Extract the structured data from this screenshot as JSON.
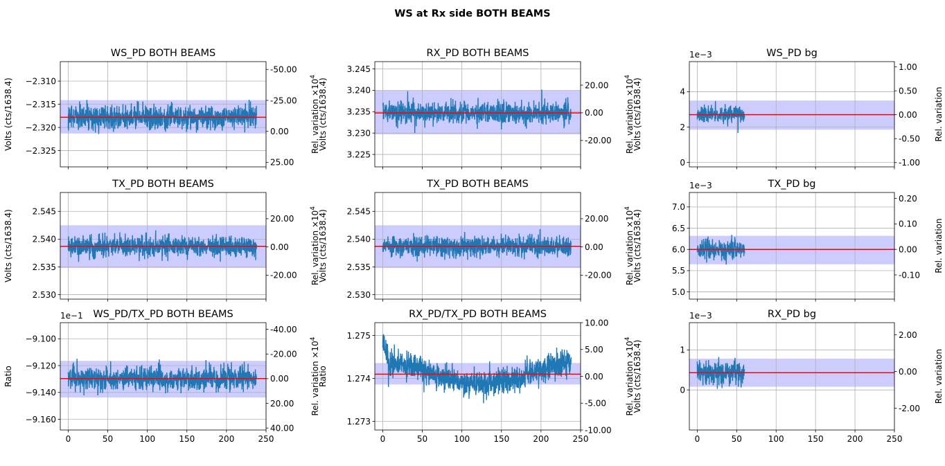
{
  "figure_title": "WS at Rx side BOTH BEAMS",
  "colors": {
    "trace": "#1f77b4",
    "mean": "#ff0000",
    "band": "#9999ff",
    "grid": "#b0b0b0"
  },
  "x_ticks": [
    "0",
    "50",
    "100",
    "150",
    "200",
    "250"
  ],
  "chart_data": [
    {
      "id": "ws-pd-both",
      "type": "line",
      "title": "WS_PD BOTH BEAMS",
      "ylabel": "Volts (cts/1638.4)",
      "ylabel2": "Rel. variation ×10",
      "ylabel2_exp": "4",
      "offset_label": "",
      "xlim": [
        -10,
        250
      ],
      "ylim": [
        -2.3285,
        -2.3058
      ],
      "ylim2": [
        28.7,
        -56.3
      ],
      "x_range": [
        0,
        238
      ],
      "mean": -2.3178,
      "band": [
        -2.3213,
        -2.3141
      ],
      "noise": 0.0045,
      "yticks": [
        -2.31,
        -2.315,
        -2.32,
        -2.325
      ],
      "yticklabels": [
        "−2.310",
        "−2.315",
        "−2.320",
        "−2.325"
      ],
      "y2ticks": [
        -50,
        -25,
        0,
        25
      ],
      "y2ticklabels": [
        "-50.00",
        "-25.00",
        "0.00",
        "25.00"
      ],
      "show_xticklabels": false
    },
    {
      "id": "rx-pd-both",
      "type": "line",
      "title": "RX_PD BOTH BEAMS",
      "ylabel": "Volts (cts/1638.4)",
      "ylabel2": "Rel. variation ×10",
      "ylabel2_exp": "4",
      "offset_label": "",
      "xlim": [
        -10,
        250
      ],
      "ylim": [
        3.2221,
        3.2467
      ],
      "ylim2": [
        -39.1,
        37.0
      ],
      "x_range": [
        0,
        238
      ],
      "mean": 3.2347,
      "band": [
        3.2297,
        3.2399
      ],
      "noise": 0.0046,
      "yticks": [
        3.225,
        3.23,
        3.235,
        3.24,
        3.245
      ],
      "yticklabels": [
        "3.225",
        "3.230",
        "3.235",
        "3.240",
        "3.245"
      ],
      "y2ticks": [
        -20,
        0,
        20
      ],
      "y2ticklabels": [
        "-20.00",
        "0.00",
        "20.00"
      ],
      "show_xticklabels": false
    },
    {
      "id": "ws-pd-bg",
      "type": "line",
      "title": "WS_PD bg",
      "ylabel": "Volts (cts/1638.4)",
      "ylabel2": "Rel. variation",
      "ylabel2_exp": "",
      "offset_label": "1e−3",
      "xlim": [
        -10,
        250
      ],
      "ylim": [
        -0.25,
        5.7
      ],
      "ylim2": [
        -1.09,
        1.11
      ],
      "x_range": [
        0,
        60
      ],
      "mean": 2.7,
      "band": [
        1.85,
        3.5
      ],
      "noise": 0.9,
      "yticks": [
        0,
        2,
        4
      ],
      "yticklabels": [
        "0",
        "2",
        "4"
      ],
      "y2ticks": [
        -1.0,
        -0.5,
        0.0,
        0.5,
        1.0
      ],
      "y2ticklabels": [
        "-1.00",
        "-0.50",
        "0.00",
        "0.50",
        "1.00"
      ],
      "show_xticklabels": false
    },
    {
      "id": "tx-pd-both-left",
      "type": "line",
      "title": "TX_PD BOTH BEAMS",
      "ylabel": "Volts (cts/1638.4)",
      "ylabel2": "Rel. variation ×10",
      "ylabel2_exp": "4",
      "offset_label": "",
      "xlim": [
        -10,
        250
      ],
      "ylim": [
        2.5292,
        2.5484
      ],
      "ylim2": [
        -37.0,
        38.6
      ],
      "x_range": [
        0,
        238
      ],
      "mean": 2.5387,
      "band": [
        2.5348,
        2.5425
      ],
      "noise": 0.0033,
      "yticks": [
        2.53,
        2.535,
        2.54,
        2.545
      ],
      "yticklabels": [
        "2.530",
        "2.535",
        "2.540",
        "2.545"
      ],
      "y2ticks": [
        -20,
        0,
        20
      ],
      "y2ticklabels": [
        "-20.00",
        "0.00",
        "20.00"
      ],
      "show_xticklabels": false
    },
    {
      "id": "tx-pd-both-mid",
      "type": "line",
      "title": "TX_PD BOTH BEAMS",
      "ylabel": "Volts (cts/1638.4)",
      "ylabel2": "Rel. variation ×10",
      "ylabel2_exp": "4",
      "offset_label": "",
      "xlim": [
        -10,
        250
      ],
      "ylim": [
        2.5292,
        2.5484
      ],
      "ylim2": [
        -37.0,
        38.6
      ],
      "x_range": [
        0,
        238
      ],
      "mean": 2.5387,
      "band": [
        2.5348,
        2.5425
      ],
      "noise": 0.0033,
      "yticks": [
        2.53,
        2.535,
        2.54,
        2.545
      ],
      "yticklabels": [
        "2.530",
        "2.535",
        "2.540",
        "2.545"
      ],
      "y2ticks": [
        -20,
        0,
        20
      ],
      "y2ticklabels": [
        "-20.00",
        "0.00",
        "20.00"
      ],
      "show_xticklabels": false
    },
    {
      "id": "tx-pd-bg",
      "type": "line",
      "title": "TX_PD bg",
      "ylabel": "Volts (cts/1638.4)",
      "ylabel2": "Rel. variation",
      "ylabel2_exp": "",
      "offset_label": "1e−3",
      "xlim": [
        -10,
        250
      ],
      "ylim": [
        4.83,
        7.34
      ],
      "ylim2": [
        -0.195,
        0.223
      ],
      "x_range": [
        0,
        60
      ],
      "mean": 6.0,
      "band": [
        5.65,
        6.32
      ],
      "noise": 0.42,
      "yticks": [
        5.0,
        5.5,
        6.0,
        6.5,
        7.0
      ],
      "yticklabels": [
        "5.0",
        "5.5",
        "6.0",
        "6.5",
        "7.0"
      ],
      "y2ticks": [
        -0.1,
        0.0,
        0.1,
        0.2
      ],
      "y2ticklabels": [
        "-0.10",
        "0.00",
        "0.10",
        "0.20"
      ],
      "show_xticklabels": false
    },
    {
      "id": "ws-tx-ratio",
      "type": "line",
      "title": "WS_PD/TX_PD BOTH BEAMS",
      "ylabel": "Ratio",
      "ylabel2": "Rel. variation ×10",
      "ylabel2_exp": "4",
      "offset_label": "1e−1",
      "xlim": [
        -10,
        250
      ],
      "ylim": [
        -9.168,
        -9.088
      ],
      "ylim2": [
        41.6,
        -45.4
      ],
      "x_range": [
        0,
        238
      ],
      "mean": -9.1297,
      "band": [
        -9.1438,
        -9.1165
      ],
      "noise": 0.016,
      "yticks": [
        -9.1,
        -9.12,
        -9.14,
        -9.16
      ],
      "yticklabels": [
        "−9.100",
        "−9.120",
        "−9.140",
        "−9.160"
      ],
      "y2ticks": [
        -40,
        -20,
        0,
        20,
        40
      ],
      "y2ticklabels": [
        "-40.00",
        "-20.00",
        "0.00",
        "20.00",
        "40.00"
      ],
      "show_xticklabels": true
    },
    {
      "id": "rx-tx-ratio",
      "type": "line",
      "title": "RX_PD/TX_PD BOTH BEAMS",
      "ylabel": "Ratio",
      "ylabel2": "Rel. variation ×10",
      "ylabel2_exp": "4",
      "offset_label": "",
      "xlim": [
        -10,
        250
      ],
      "ylim": [
        1.2728,
        1.2753
      ],
      "ylim2": [
        -10.0,
        10.0
      ],
      "x_range": [
        0,
        238
      ],
      "mean": 1.2741,
      "band": [
        1.27386,
        1.27436
      ],
      "noise": 0.00055,
      "yticks": [
        1.273,
        1.274,
        1.275
      ],
      "yticklabels": [
        "1.273",
        "1.274",
        "1.275"
      ],
      "y2ticks": [
        -10,
        -5,
        0,
        5,
        10
      ],
      "y2ticklabels": [
        "-10.00",
        "-5.00",
        "0.00",
        "5.00",
        "10.00"
      ],
      "show_xticklabels": true
    },
    {
      "id": "rx-pd-bg",
      "type": "line",
      "title": "RX_PD bg",
      "ylabel": "Volts (cts/1638.4)",
      "ylabel2": "Rel. variation",
      "ylabel2_exp": "",
      "offset_label": "1e−3",
      "xlim": [
        -10,
        250
      ],
      "ylim": [
        -1.0,
        1.68
      ],
      "ylim2": [
        -3.18,
        2.66
      ],
      "x_range": [
        0,
        60
      ],
      "mean": 0.43,
      "band": [
        0.08,
        0.78
      ],
      "noise": 0.55,
      "yticks": [
        0,
        1
      ],
      "yticklabels": [
        "0",
        "1"
      ],
      "y2ticks": [
        -2.0,
        0.0,
        2.0
      ],
      "y2ticklabels": [
        "-2.00",
        "0.00",
        "2.00"
      ],
      "show_xticklabels": true
    }
  ]
}
